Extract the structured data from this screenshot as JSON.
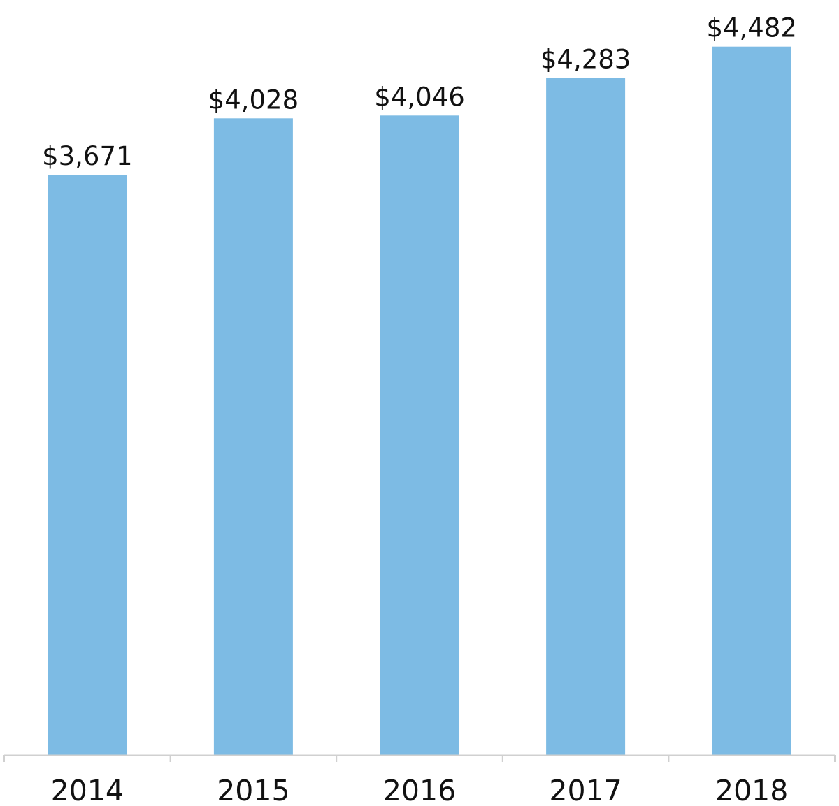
{
  "chart_data": {
    "type": "bar",
    "categories": [
      "2014",
      "2015",
      "2016",
      "2017",
      "2018"
    ],
    "values": [
      3671,
      4028,
      4046,
      4283,
      4482
    ],
    "data_labels": [
      "$3,671",
      "$4,028",
      "$4,046",
      "$4,283",
      "$4,482"
    ],
    "title": "",
    "xlabel": "",
    "ylabel": "",
    "ylim": [
      0,
      4600
    ],
    "grid": false,
    "legend": "none",
    "colors": {
      "bar": "#7dbbe4",
      "axis": "#d0d0d0",
      "text": "#111111"
    }
  }
}
